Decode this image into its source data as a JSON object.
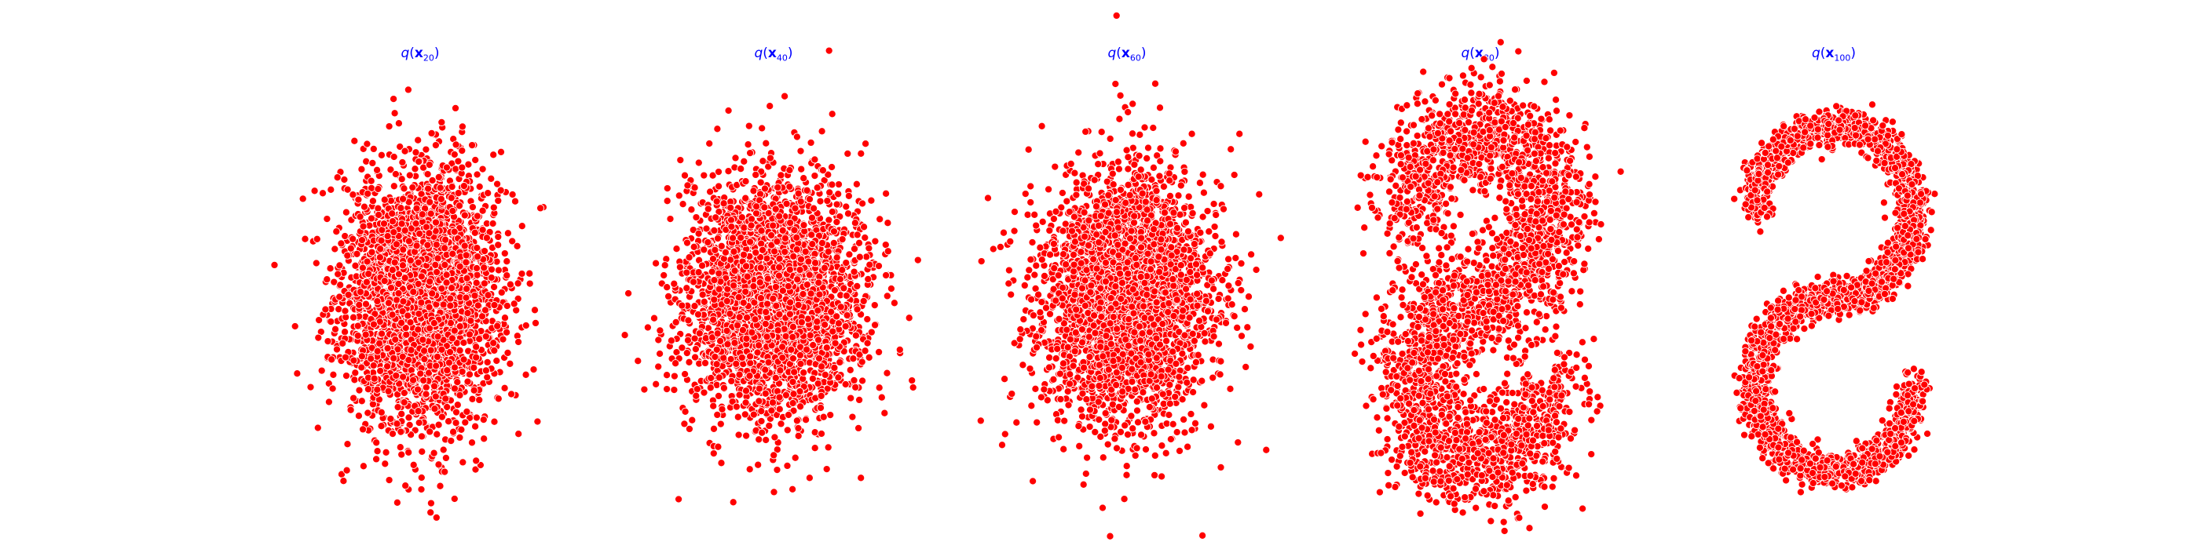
{
  "chart_data": [
    {
      "type": "scatter",
      "title": "q(x20)",
      "title_parts": {
        "func": "q",
        "var": "x",
        "sub": "20"
      },
      "title_color": "#0000ff",
      "point_color": "#ff0000",
      "point_edge_color": "#ffffff",
      "axes_visible": false,
      "shape": "gaussian-blob",
      "n_points": 3000,
      "center": [
        0.0,
        0.0
      ],
      "std": [
        0.5,
        0.7
      ],
      "xlim": [
        -2.0,
        2.0
      ],
      "ylim": [
        -2.15,
        2.15
      ]
    },
    {
      "type": "scatter",
      "title": "q(x40)",
      "title_parts": {
        "func": "q",
        "var": "x",
        "sub": "40"
      },
      "title_color": "#0000ff",
      "point_color": "#ff0000",
      "point_edge_color": "#ffffff",
      "axes_visible": false,
      "shape": "gaussian-blob",
      "n_points": 3000,
      "center": [
        0.0,
        0.0
      ],
      "std": [
        0.55,
        0.65
      ],
      "xlim": [
        -2.0,
        2.0
      ],
      "ylim": [
        -2.15,
        2.15
      ]
    },
    {
      "type": "scatter",
      "title": "q(x60)",
      "title_parts": {
        "func": "q",
        "var": "x",
        "sub": "60"
      },
      "title_color": "#0000ff",
      "point_color": "#ff0000",
      "point_edge_color": "#ffffff",
      "axes_visible": false,
      "shape": "gaussian-blob",
      "n_points": 3000,
      "center": [
        0.0,
        0.0
      ],
      "std": [
        0.55,
        0.7
      ],
      "xlim": [
        -2.0,
        2.0
      ],
      "ylim": [
        -2.15,
        2.15
      ]
    },
    {
      "type": "scatter",
      "title": "q(x80)",
      "title_parts": {
        "func": "q",
        "var": "x",
        "sub": "80"
      },
      "title_color": "#0000ff",
      "point_color": "#ff0000",
      "point_edge_color": "#ffffff",
      "axes_visible": false,
      "shape": "noisy-s-curve",
      "n_points": 3000,
      "noise": 0.32,
      "xlim": [
        -2.0,
        2.0
      ],
      "ylim": [
        -2.15,
        2.15
      ]
    },
    {
      "type": "scatter",
      "title": "q(x100)",
      "title_parts": {
        "func": "q",
        "var": "x",
        "sub": "100"
      },
      "title_color": "#0000ff",
      "point_color": "#ff0000",
      "point_edge_color": "#ffffff",
      "axes_visible": false,
      "shape": "s-curve",
      "n_points": 3000,
      "noise": 0.1,
      "xlim": [
        -2.0,
        2.0
      ],
      "ylim": [
        -2.15,
        2.15
      ]
    }
  ]
}
